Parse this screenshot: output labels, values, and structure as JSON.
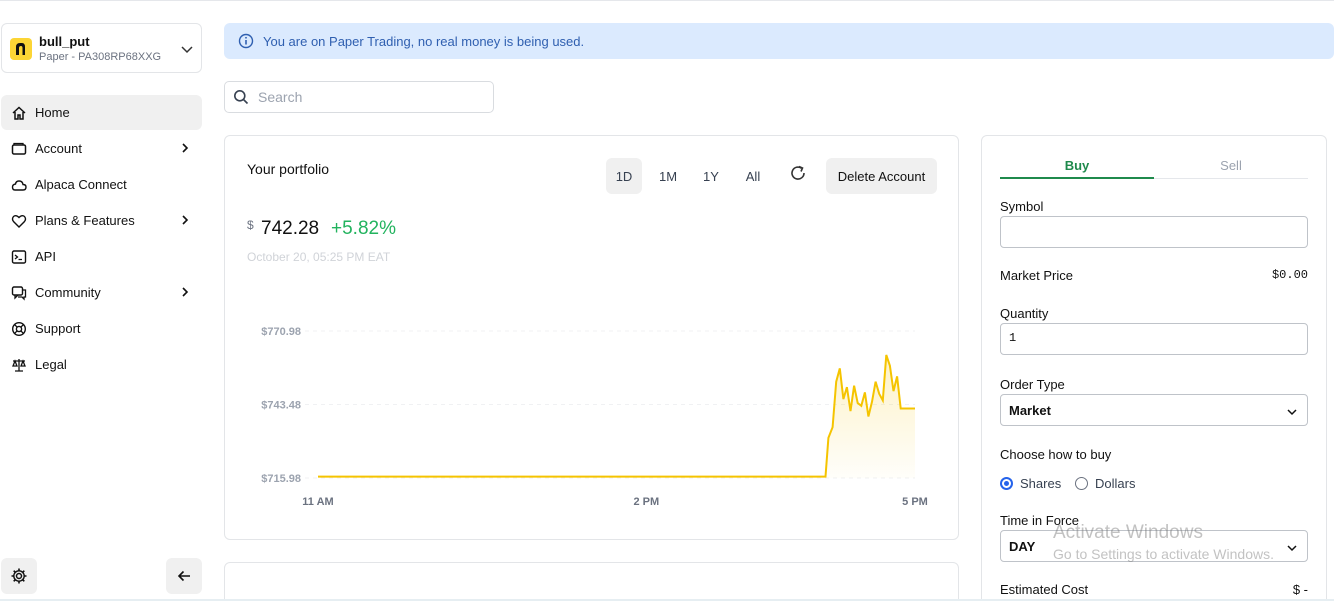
{
  "account": {
    "name": "bull_put",
    "subtitle": "Paper - PA308RP68XXG"
  },
  "sidebar": {
    "items": [
      {
        "label": "Home",
        "icon": "home-icon",
        "active": true,
        "submenu": false
      },
      {
        "label": "Account",
        "icon": "wallet-icon",
        "active": false,
        "submenu": true
      },
      {
        "label": "Alpaca Connect",
        "icon": "cloud-icon",
        "active": false,
        "submenu": false
      },
      {
        "label": "Plans & Features",
        "icon": "heart-icon",
        "active": false,
        "submenu": true
      },
      {
        "label": "API",
        "icon": "terminal-icon",
        "active": false,
        "submenu": false
      },
      {
        "label": "Community",
        "icon": "chat-icon",
        "active": false,
        "submenu": true
      },
      {
        "label": "Support",
        "icon": "lifebuoy-icon",
        "active": false,
        "submenu": false
      },
      {
        "label": "Legal",
        "icon": "scale-icon",
        "active": false,
        "submenu": false
      }
    ]
  },
  "banner": {
    "text": "You are on Paper Trading, no real money is being used."
  },
  "search": {
    "placeholder": "Search"
  },
  "portfolio": {
    "title": "Your portfolio",
    "ranges": [
      "1D",
      "1M",
      "1Y",
      "All"
    ],
    "active_range": "1D",
    "delete_label": "Delete Account",
    "currency": "$",
    "value": "742.28",
    "change": "+5.82%",
    "timestamp": "October 20, 05:25 PM EAT"
  },
  "chart_data": {
    "type": "line",
    "y_tick_labels": [
      "$770.98",
      "$743.48",
      "$715.98"
    ],
    "x_tick_labels": [
      "11 AM",
      "2 PM",
      "5 PM"
    ],
    "ylim": [
      715.98,
      770.98
    ],
    "color": "#f5c400",
    "series": [
      {
        "x": [
          0,
          0.85,
          0.855,
          0.862,
          0.868,
          0.874,
          0.88,
          0.886,
          0.892,
          0.898,
          0.904,
          0.91,
          0.916,
          0.922,
          0.928,
          0.934,
          0.94,
          0.946,
          0.952,
          0.958,
          0.964,
          0.97,
          0.976,
          0.985,
          1.0
        ],
        "values": [
          716.5,
          716.5,
          731.0,
          735.0,
          752.0,
          757.0,
          745.5,
          750.0,
          741.0,
          750.5,
          744.0,
          743.0,
          748.0,
          739.0,
          744.5,
          752.0,
          747.5,
          745.0,
          762.0,
          758.0,
          748.5,
          754.0,
          742.0,
          742.0,
          742.0
        ]
      }
    ]
  },
  "order": {
    "tabs": [
      "Buy",
      "Sell"
    ],
    "active_tab": "Buy",
    "symbol_label": "Symbol",
    "symbol_value": "",
    "market_price_label": "Market Price",
    "market_price_value": "$0.00",
    "quantity_label": "Quantity",
    "quantity_value": "1",
    "order_type_label": "Order Type",
    "order_type_value": "Market",
    "how_label": "Choose how to buy",
    "how_options": [
      "Shares",
      "Dollars"
    ],
    "how_selected": "Shares",
    "tif_label": "Time in Force",
    "tif_value": "DAY",
    "est_label": "Estimated Cost",
    "est_value": "$ -"
  },
  "watermark": {
    "line1": "Activate Windows",
    "line2": "Go to Settings to activate Windows."
  }
}
